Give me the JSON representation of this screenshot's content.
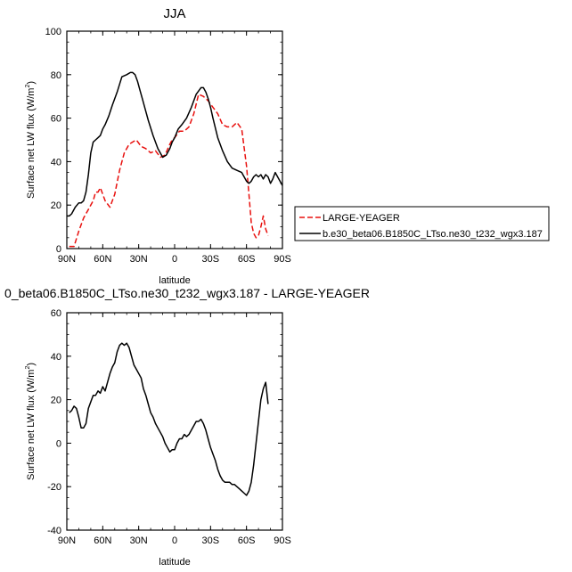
{
  "chart_data": [
    {
      "type": "line",
      "title": "JJA",
      "xlabel": "latitude",
      "ylabel": "Surface net LW flux (W/m²)",
      "ylabel_main": "Surface net LW flux (W/m",
      "ylabel_sup": "2",
      "ylabel_close": ")",
      "xlim": [
        -90,
        90
      ],
      "ylim": [
        0,
        100
      ],
      "x_ticks": [
        -90,
        -60,
        -30,
        0,
        30,
        60,
        90
      ],
      "x_tick_labels": [
        "90N",
        "60N",
        "30N",
        "0",
        "30S",
        "60S",
        "90S"
      ],
      "y_ticks": [
        0,
        20,
        40,
        60,
        80,
        100
      ],
      "y_tick_labels": [
        "0",
        "20",
        "40",
        "60",
        "80",
        "100"
      ],
      "legend": "right, outside plot",
      "series": [
        {
          "name": "LARGE-YEAGER",
          "color": "#e8100e",
          "dash": "dashed",
          "x": [
            -88,
            -84,
            -80,
            -76,
            -72,
            -68,
            -66,
            -64,
            -62,
            -58,
            -54,
            -50,
            -46,
            -42,
            -38,
            -35,
            -32,
            -28,
            -24,
            -20,
            -16,
            -12,
            -8,
            -4,
            -2,
            0,
            4,
            8,
            12,
            16,
            20,
            24,
            28,
            32,
            36,
            40,
            44,
            48,
            52,
            56,
            60,
            62,
            64,
            66,
            68,
            70,
            72,
            74,
            76,
            78
          ],
          "y": [
            1,
            1,
            8,
            14,
            18,
            22,
            26,
            26,
            28,
            22,
            19,
            25,
            36,
            44,
            48,
            49,
            50,
            47,
            46,
            44,
            45,
            42,
            43,
            48,
            50,
            51,
            54,
            54,
            56,
            62,
            71,
            70,
            68,
            65,
            62,
            57,
            56,
            56,
            58,
            55,
            38,
            25,
            12,
            7,
            5,
            6,
            10,
            15,
            9,
            6
          ]
        },
        {
          "name": "b.e30_beta06.B1850C_LTso.ne30_t232_wgx3.187",
          "color": "#000000",
          "dash": "solid",
          "x": [
            -90,
            -88,
            -86,
            -83,
            -80,
            -78,
            -76,
            -74,
            -72,
            -70,
            -68,
            -66,
            -64,
            -62,
            -60,
            -58,
            -55,
            -52,
            -48,
            -44,
            -40,
            -37,
            -35,
            -33,
            -31,
            -29,
            -27,
            -25,
            -22,
            -18,
            -14,
            -10,
            -7,
            -4,
            -2,
            0,
            3,
            6,
            10,
            14,
            18,
            22,
            24,
            26,
            28,
            30,
            32,
            36,
            40,
            44,
            48,
            52,
            56,
            60,
            62,
            64,
            66,
            68,
            70,
            72,
            74,
            76,
            78,
            80,
            82,
            84,
            86,
            88,
            90
          ],
          "y": [
            15,
            15,
            16,
            19,
            21,
            21,
            22,
            26,
            34,
            44,
            49,
            50,
            51,
            52,
            55,
            57,
            61,
            66,
            72,
            79,
            80,
            81,
            81,
            80,
            77,
            73,
            69,
            65,
            59,
            52,
            46,
            42,
            43,
            46,
            49,
            51,
            55,
            57,
            60,
            65,
            71,
            74,
            74,
            72,
            69,
            65,
            60,
            51,
            45,
            40,
            37,
            36,
            35,
            31,
            30,
            31,
            33,
            34,
            33,
            34,
            32,
            34,
            33,
            30,
            32,
            35,
            33,
            31,
            29
          ]
        }
      ]
    },
    {
      "type": "line",
      "title": "0_beta06.B1850C_LTso.ne30_t232_wgx3.187 - LARGE-YEAGER",
      "xlabel": "latitude",
      "ylabel": "Surface net LW flux (W/m²)",
      "ylabel_main": "Surface net LW flux (W/m",
      "ylabel_sup": "2",
      "ylabel_close": ")",
      "xlim": [
        -90,
        90
      ],
      "ylim": [
        -40,
        60
      ],
      "x_ticks": [
        -90,
        -60,
        -30,
        0,
        30,
        60,
        90
      ],
      "x_tick_labels": [
        "90N",
        "60N",
        "30N",
        "0",
        "30S",
        "60S",
        "90S"
      ],
      "y_ticks": [
        -40,
        -20,
        0,
        20,
        40,
        60
      ],
      "y_tick_labels": [
        "-40",
        "-20",
        "0",
        "20",
        "40",
        "60"
      ],
      "legend": "none",
      "series": [
        {
          "color": "#000000",
          "dash": "solid",
          "x": [
            -88,
            -86,
            -84,
            -82,
            -80,
            -78,
            -76,
            -74,
            -72,
            -70,
            -68,
            -66,
            -64,
            -62,
            -60,
            -58,
            -56,
            -54,
            -52,
            -50,
            -48,
            -46,
            -44,
            -42,
            -40,
            -38,
            -36,
            -34,
            -32,
            -30,
            -28,
            -26,
            -24,
            -22,
            -20,
            -18,
            -16,
            -14,
            -12,
            -10,
            -8,
            -6,
            -4,
            -2,
            0,
            2,
            4,
            6,
            8,
            10,
            12,
            14,
            16,
            18,
            20,
            22,
            24,
            26,
            28,
            30,
            32,
            34,
            36,
            38,
            40,
            42,
            44,
            46,
            48,
            50,
            52,
            54,
            56,
            58,
            60,
            62,
            64,
            66,
            68,
            70,
            72,
            74,
            76,
            78
          ],
          "y": [
            14,
            15,
            17,
            16,
            12,
            7,
            7,
            9,
            16,
            19,
            22,
            22,
            24,
            23,
            26,
            24,
            28,
            32,
            35,
            37,
            42,
            45,
            46,
            45,
            46,
            44,
            40,
            36,
            34,
            32,
            30,
            25,
            22,
            18,
            14,
            12,
            9,
            7,
            5,
            3,
            0,
            -2,
            -4,
            -3,
            -3,
            0,
            2,
            2,
            4,
            3,
            4,
            6,
            8,
            10,
            10,
            11,
            9,
            6,
            2,
            -2,
            -5,
            -8,
            -12,
            -15,
            -17,
            -18,
            -18,
            -18,
            -19,
            -19,
            -20,
            -21,
            -22,
            -23,
            -24,
            -22,
            -18,
            -10,
            0,
            10,
            20,
            25,
            28,
            18
          ]
        }
      ]
    }
  ]
}
